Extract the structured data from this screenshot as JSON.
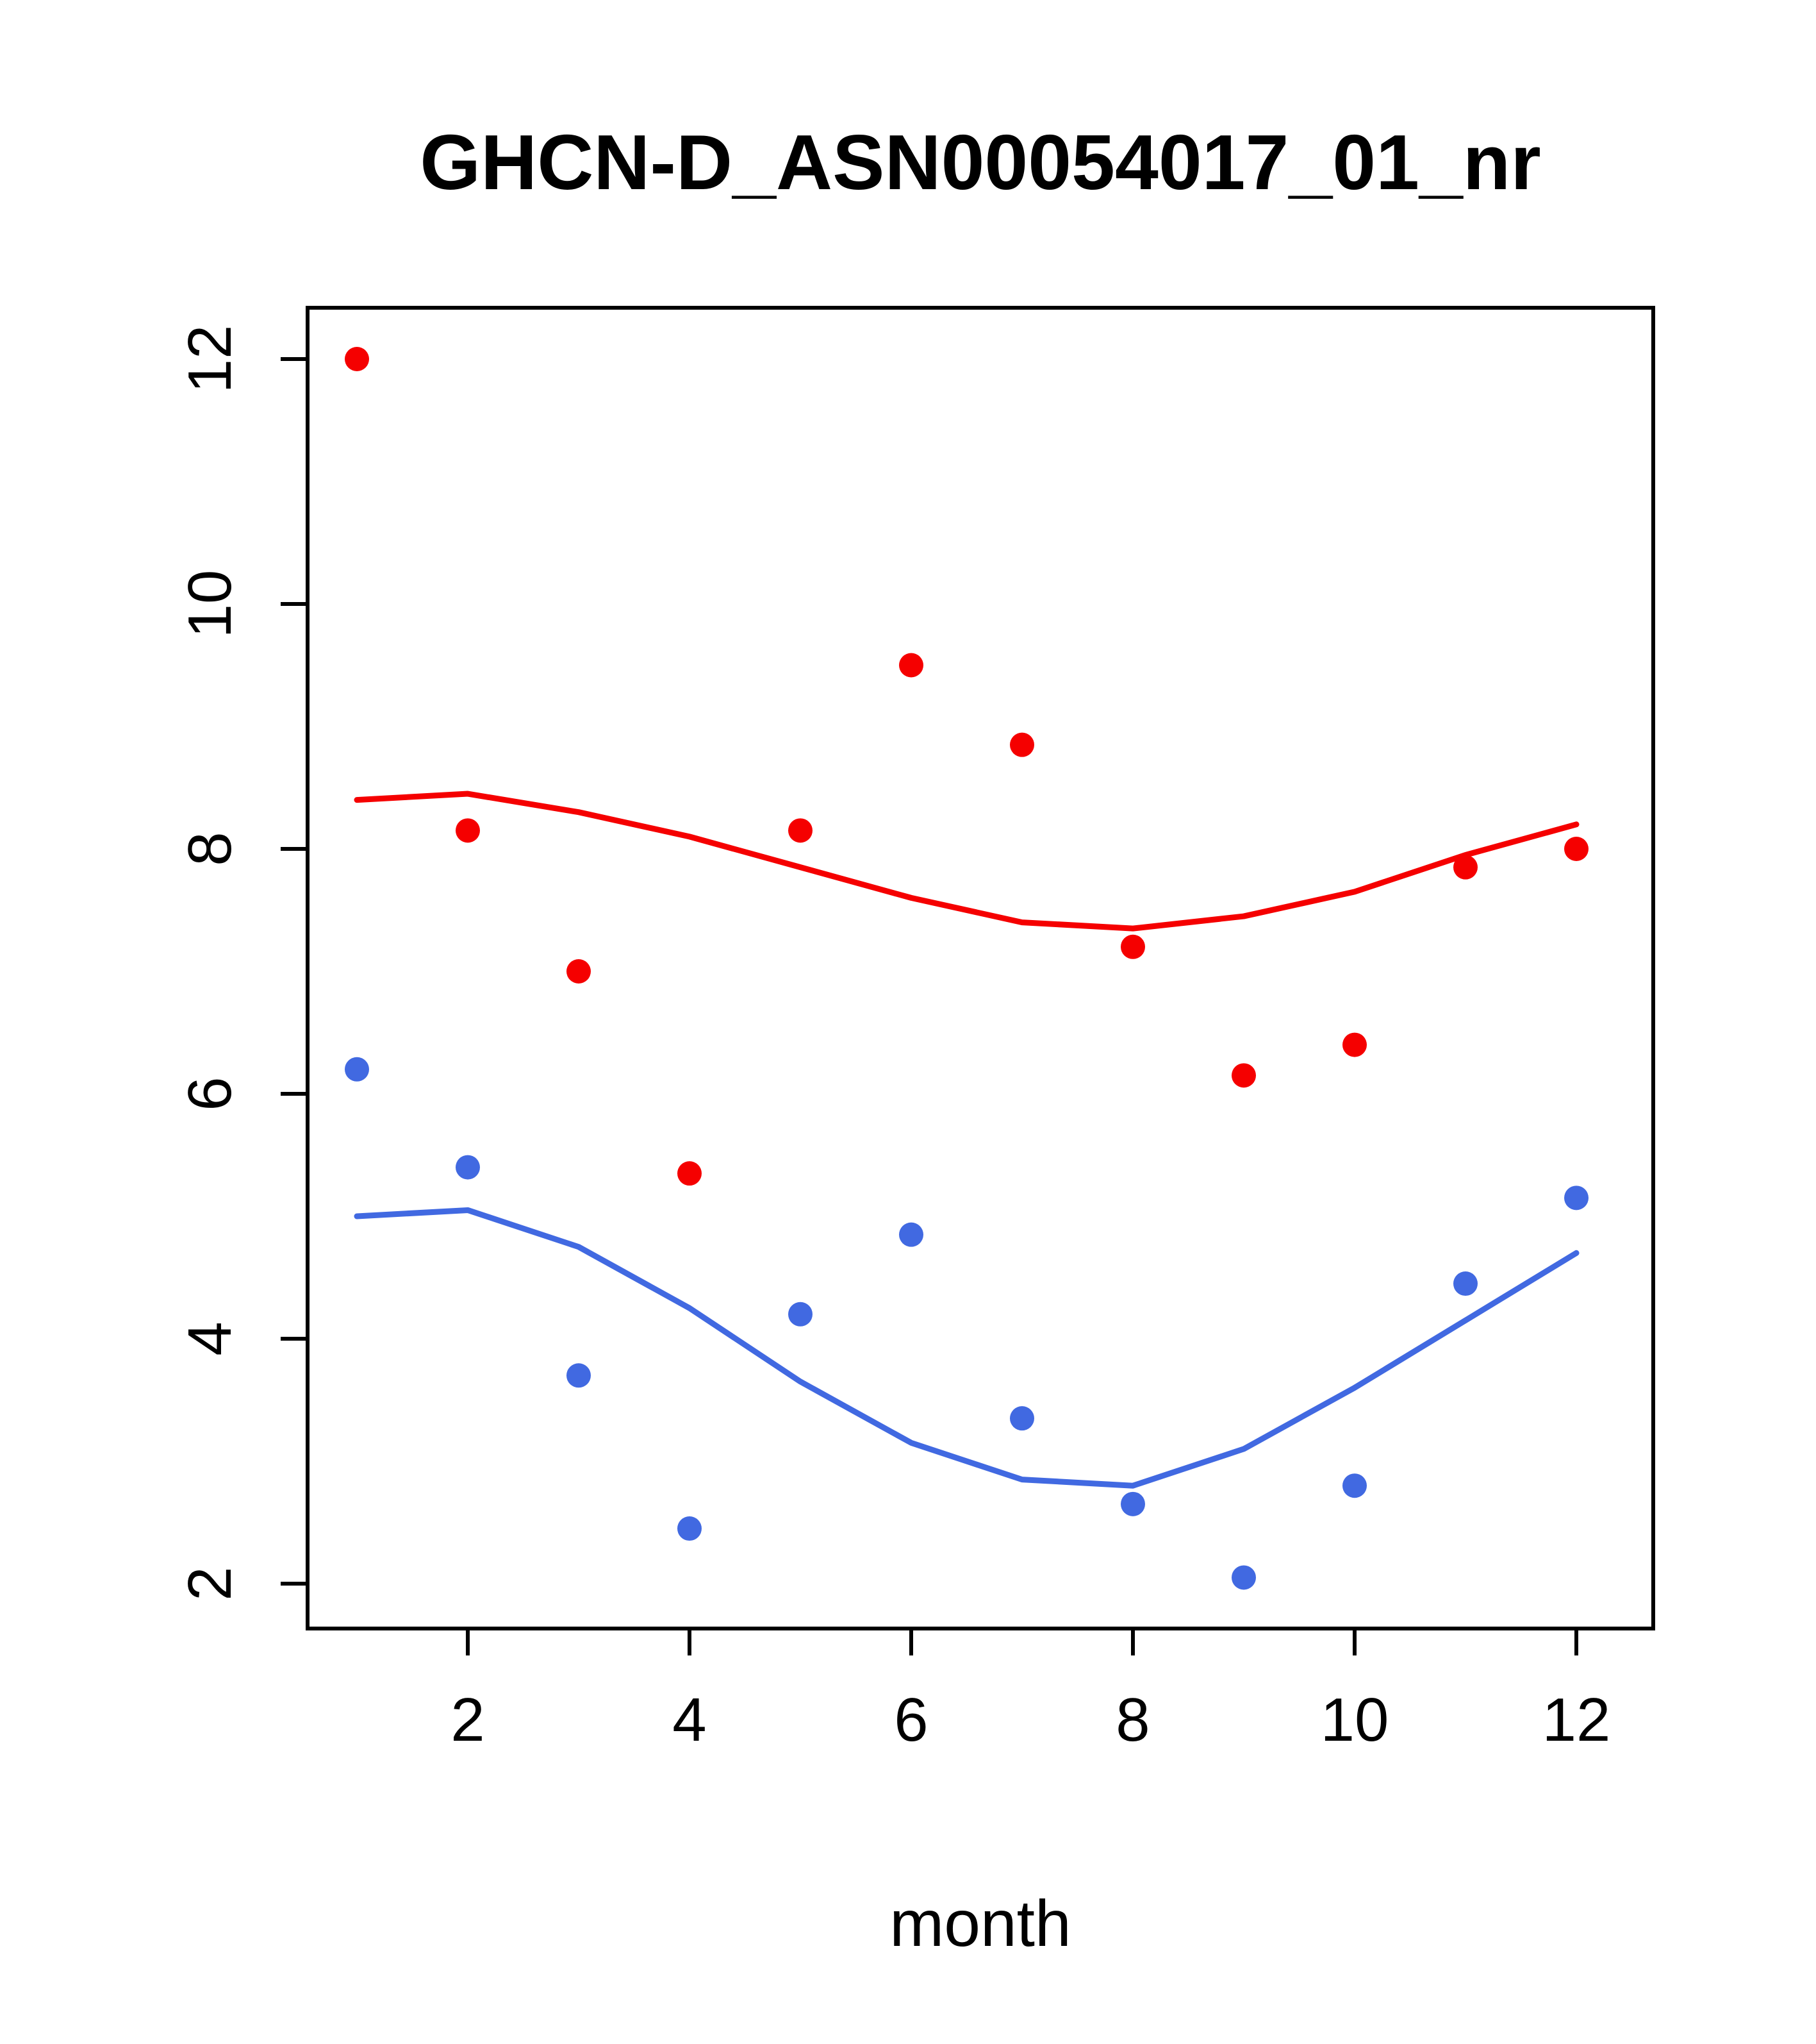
{
  "chart_data": {
    "type": "scatter",
    "title": "GHCN-D_ASN00054017_01_nr",
    "xlabel": "month",
    "ylabel": "",
    "x": [
      1,
      2,
      3,
      4,
      5,
      6,
      7,
      8,
      9,
      10,
      11,
      12
    ],
    "xlim": [
      1,
      12
    ],
    "ylim": [
      2,
      12
    ],
    "xticks": [
      2,
      4,
      6,
      8,
      10,
      12
    ],
    "yticks": [
      2,
      4,
      6,
      8,
      10,
      12
    ],
    "grid": false,
    "legend": "none",
    "series": [
      {
        "name": "upper-points",
        "kind": "points",
        "color": "#f50000",
        "values": [
          12.0,
          8.15,
          7.0,
          5.35,
          8.15,
          9.5,
          8.85,
          7.2,
          6.15,
          6.4,
          7.85,
          8.0
        ]
      },
      {
        "name": "lower-points",
        "kind": "points",
        "color": "#4169e1",
        "values": [
          6.2,
          5.4,
          3.7,
          2.45,
          4.2,
          4.85,
          3.35,
          2.65,
          2.05,
          2.8,
          4.45,
          5.15
        ]
      },
      {
        "name": "upper-smooth-line",
        "kind": "line",
        "color": "#f50000",
        "values": [
          8.4,
          8.45,
          8.3,
          8.1,
          7.85,
          7.6,
          7.4,
          7.35,
          7.45,
          7.65,
          7.95,
          8.2
        ]
      },
      {
        "name": "lower-smooth-line",
        "kind": "line",
        "color": "#4169e1",
        "values": [
          5.0,
          5.05,
          4.75,
          4.25,
          3.65,
          3.15,
          2.85,
          2.8,
          3.1,
          3.6,
          4.15,
          4.7
        ]
      }
    ]
  },
  "colors": {
    "red": "#f50000",
    "blue": "#4169e1",
    "axis": "#000000",
    "background": "#ffffff"
  }
}
